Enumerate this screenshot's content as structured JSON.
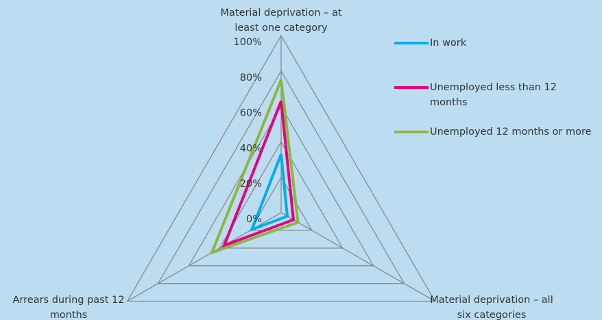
{
  "chart_data": {
    "type": "radar",
    "categories": [
      "Material deprivation – at least one category",
      "Material deprivation – all six categories",
      "Arrears during past 12 months"
    ],
    "series": [
      {
        "name": "In work",
        "color": "#00aeef",
        "values": [
          33,
          4,
          19
        ]
      },
      {
        "name": "Unemployed less than 12 months",
        "color": "#e6007e",
        "values": [
          63,
          8,
          37
        ]
      },
      {
        "name": "Unemployed 12 months or more",
        "color": "#8db641",
        "values": [
          75,
          11,
          45
        ]
      }
    ],
    "ylim": [
      0,
      100
    ],
    "yticks": [
      {
        "value": 0,
        "label": "0%"
      },
      {
        "value": 20,
        "label": "20%"
      },
      {
        "value": 40,
        "label": "40%"
      },
      {
        "value": 60,
        "label": "60%"
      },
      {
        "value": 80,
        "label": "80%"
      },
      {
        "value": 100,
        "label": "100%"
      }
    ],
    "grid": true,
    "legend": "right"
  }
}
